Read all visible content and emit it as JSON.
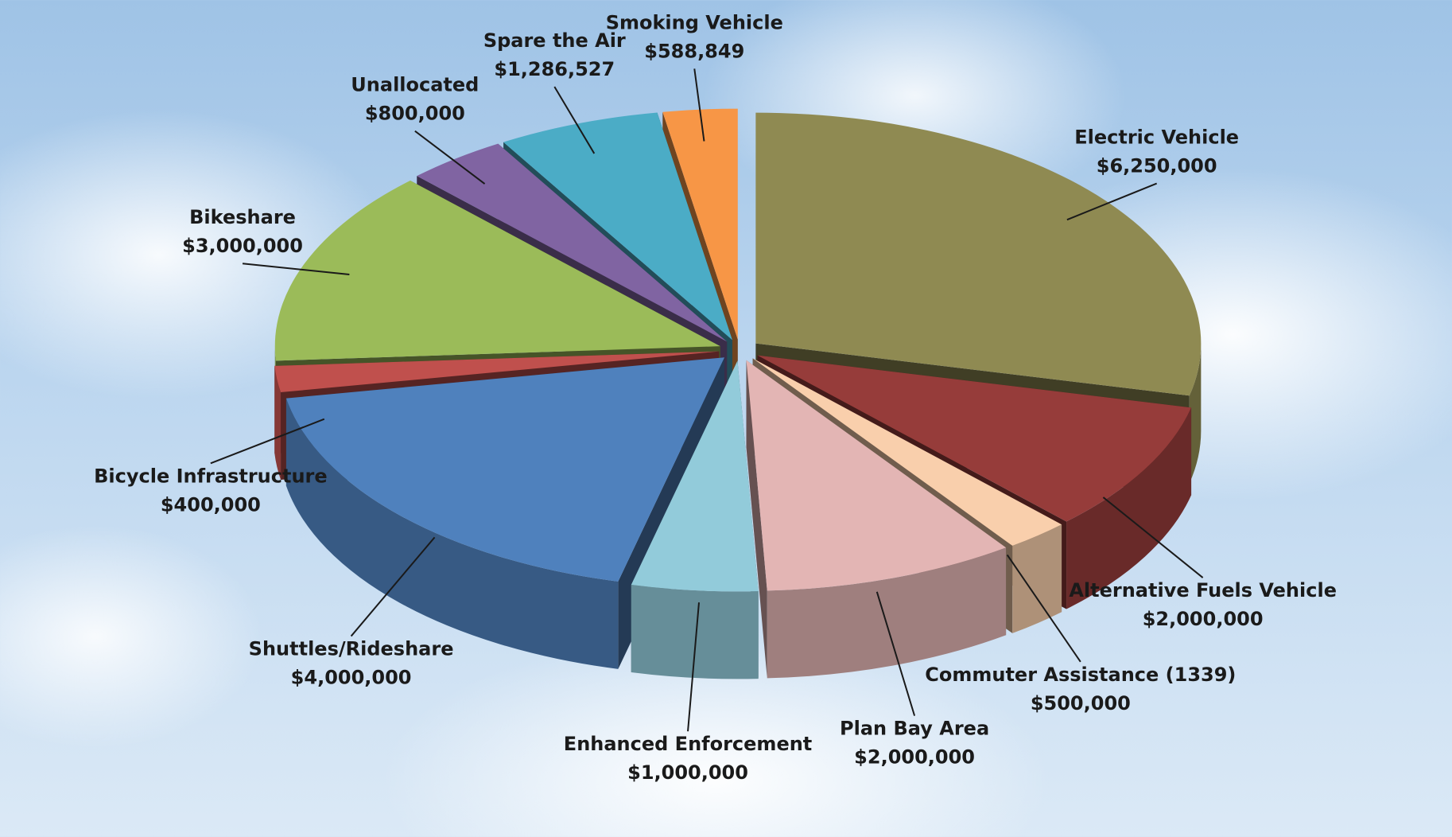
{
  "chart_data": {
    "type": "pie3d",
    "categories": [
      "Electric Vehicle",
      "Alternative Fuels Vehicle",
      "Commuter Assistance (1339)",
      "Plan Bay Area",
      "Enhanced Enforcement",
      "Shuttles/Rideshare",
      "Bicycle Infrastructure",
      "Bikeshare",
      "Unallocated",
      "Spare the Air",
      "Smoking Vehicle"
    ],
    "values": [
      6250000,
      2000000,
      500000,
      2000000,
      1000000,
      4000000,
      400000,
      3000000,
      800000,
      1286527,
      588849
    ],
    "value_labels": [
      "$6,250,000",
      "$2,000,000",
      "$500,000",
      "$2,000,000",
      "$1,000,000",
      "$4,000,000",
      "$400,000",
      "$3,000,000",
      "$800,000",
      "$1,286,527",
      "$588,849"
    ],
    "colors": [
      "#8f8a52",
      "#963c3a",
      "#f9cfac",
      "#e3b5b4",
      "#92cbda",
      "#4f81bd",
      "#c0504d",
      "#9bbb59",
      "#8064a2",
      "#4bacc6",
      "#f79646"
    ]
  }
}
